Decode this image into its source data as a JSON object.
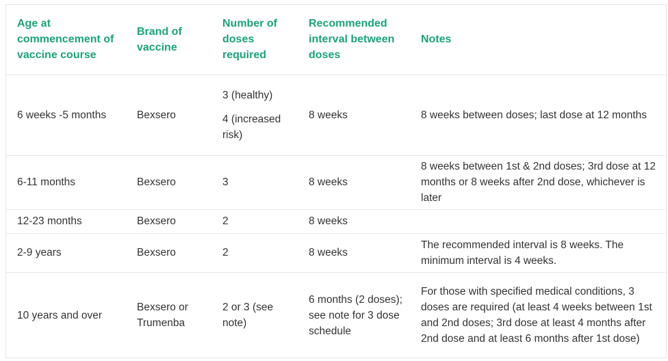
{
  "table": {
    "headers": [
      "Age at commencement of vaccine course",
      "Brand of vaccine",
      "Number of doses required",
      "Recommended interval between doses",
      "Notes"
    ],
    "rows": [
      {
        "age": "6 weeks -5 months",
        "brand": "Bexsero",
        "doses_a": "3 (healthy)",
        "doses_b": "4 (increased risk)",
        "interval": "8 weeks",
        "notes": "8 weeks between doses; last dose at 12 months"
      },
      {
        "age": "6-11 months",
        "brand": "Bexsero",
        "doses": "3",
        "interval": "8 weeks",
        "notes": "8 weeks between 1st & 2nd doses; 3rd dose at 12 months or 8 weeks after 2nd dose, whichever is later"
      },
      {
        "age": "12-23 months",
        "brand": "Bexsero",
        "doses": "2",
        "interval": "8 weeks",
        "notes": ""
      },
      {
        "age": "2-9 years",
        "brand": "Bexsero",
        "doses": "2",
        "interval": "8 weeks",
        "notes": "The recommended interval is 8 weeks. The minimum interval is 4 weeks."
      },
      {
        "age": "10 years and over",
        "brand": "Bexsero or Trumenba",
        "doses": "2 or 3 (see note)",
        "interval": "6 months (2 doses); see note for 3 dose schedule",
        "notes": "For those with specified medical conditions, 3 doses are required (at least 4 weeks between 1st and 2nd doses; 3rd dose at least 4 months after 2nd dose and at least 6 months after 1st dose)"
      }
    ]
  }
}
